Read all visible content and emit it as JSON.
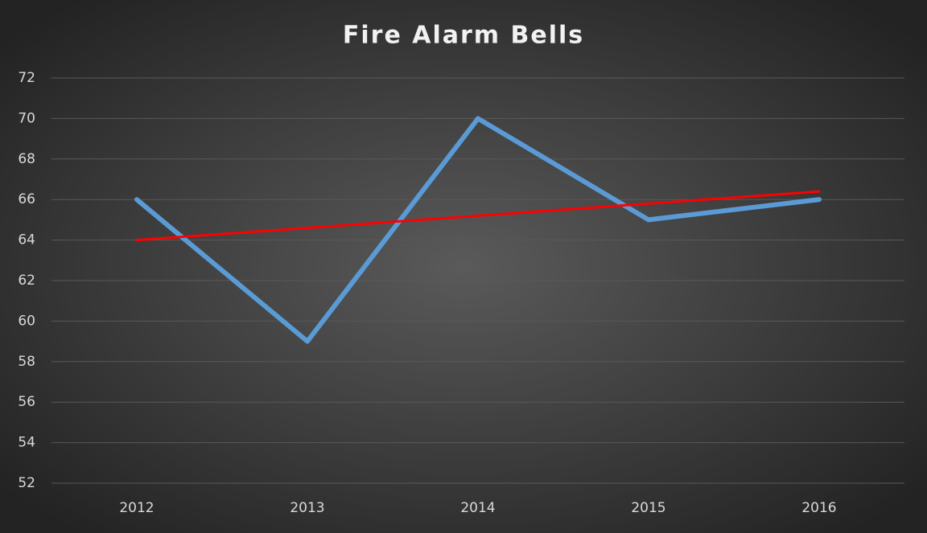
{
  "chart_data": {
    "type": "line",
    "title": "Fire Alarm Bells",
    "categories": [
      "2012",
      "2013",
      "2014",
      "2015",
      "2016"
    ],
    "series": [
      {
        "color": "#5b9bd5",
        "values": [
          66,
          59,
          70,
          65,
          66
        ]
      },
      {
        "color": "#ff0000",
        "values": [
          64,
          64.6,
          65.2,
          65.8,
          66.4
        ]
      }
    ],
    "ylim": [
      52,
      72
    ],
    "yticks": [
      52,
      54,
      56,
      58,
      60,
      62,
      64,
      66,
      68,
      70,
      72
    ],
    "grid": true
  }
}
